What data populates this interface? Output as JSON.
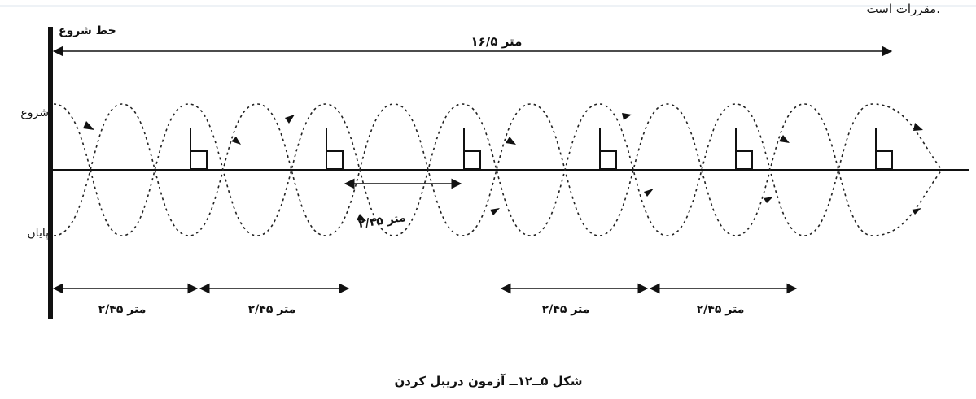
{
  "texts": {
    "top_corner": "مقررات است.",
    "start_line_label": "خط شروع",
    "total_distance": "۱۶/۵ متر",
    "start_label": "شروع",
    "end_label": "پایان",
    "mid_spacing": "۲/۴۵ متر",
    "spacing_1": "۲/۴۵ متر",
    "spacing_2": "۲/۴۵ متر",
    "spacing_3": "۲/۴۵ متر",
    "spacing_4": "۲/۴۵ متر",
    "caption": "شکل ۵ــ۱۲ــ آزمون دریبل کردن"
  },
  "diagram": {
    "cones": 6,
    "path_style": "dashed",
    "line_color": "#111111"
  }
}
